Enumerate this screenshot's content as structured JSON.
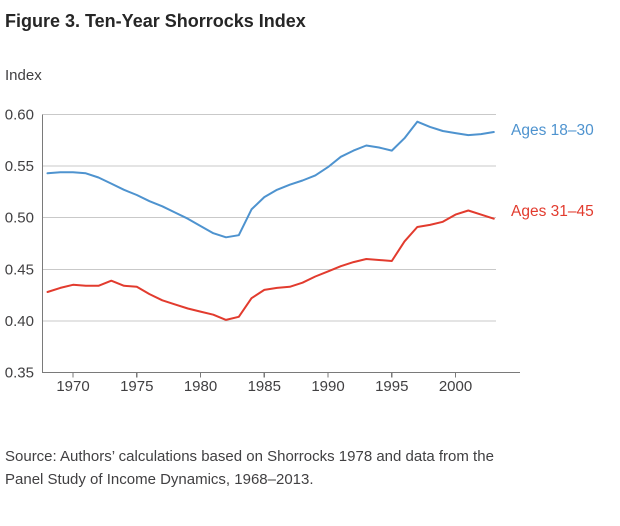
{
  "title": "Figure 3. Ten-Year Shorrocks Index",
  "source": {
    "line1": "Source: Authors’ calculations based on Shorrocks 1978 and data from the",
    "line2": "Panel Study of Income Dynamics, 1968–2013."
  },
  "colors": {
    "blue": "#4e93cf",
    "red": "#e23b2e",
    "gridline": "#c9c9c9",
    "axis": "#7a7a7a",
    "tick_text": "#414042",
    "title_text": "#262626"
  },
  "chart_data": {
    "type": "line",
    "title": "Figure 3. Ten-Year Shorrocks Index",
    "ylabel": "Index",
    "xlabel": "",
    "ylim": [
      0.35,
      0.6
    ],
    "xlim": [
      1967.5,
      2004.8
    ],
    "grid": "horizontal",
    "legend_position": "labels-right-of-lines",
    "x": [
      1968,
      1969,
      1970,
      1971,
      1972,
      1973,
      1974,
      1975,
      1976,
      1977,
      1978,
      1979,
      1980,
      1981,
      1982,
      1983,
      1984,
      1985,
      1986,
      1987,
      1988,
      1989,
      1990,
      1991,
      1992,
      1993,
      1994,
      1995,
      1996,
      1997,
      1998,
      1999,
      2000,
      2001,
      2002,
      2003
    ],
    "series": [
      {
        "name": "Ages 18–30",
        "color": "#4e93cf",
        "values": [
          0.543,
          0.544,
          0.544,
          0.543,
          0.539,
          0.533,
          0.527,
          0.522,
          0.516,
          0.511,
          0.505,
          0.499,
          0.492,
          0.485,
          0.481,
          0.483,
          0.508,
          0.52,
          0.527,
          0.532,
          0.536,
          0.541,
          0.549,
          0.559,
          0.565,
          0.57,
          0.568,
          0.565,
          0.577,
          0.593,
          0.588,
          0.584,
          0.582,
          0.58,
          0.581,
          0.583
        ]
      },
      {
        "name": "Ages 31–45",
        "color": "#e23b2e",
        "values": [
          0.428,
          0.432,
          0.435,
          0.434,
          0.434,
          0.439,
          0.434,
          0.433,
          0.426,
          0.42,
          0.416,
          0.412,
          0.409,
          0.406,
          0.401,
          0.404,
          0.422,
          0.43,
          0.432,
          0.433,
          0.437,
          0.443,
          0.448,
          0.453,
          0.457,
          0.46,
          0.459,
          0.458,
          0.477,
          0.491,
          0.493,
          0.496,
          0.503,
          0.507,
          0.503,
          0.499
        ]
      }
    ],
    "yticks": [
      0.35,
      0.4,
      0.45,
      0.5,
      0.55,
      0.6
    ],
    "ytick_labels": [
      "0.35",
      "0.40",
      "0.45",
      "0.50",
      "0.55",
      "0.60"
    ],
    "xticks": [
      1970,
      1975,
      1980,
      1985,
      1990,
      1995,
      2000
    ],
    "xtick_labels": [
      "1970",
      "1975",
      "1980",
      "1985",
      "1990",
      "1995",
      "2000"
    ]
  }
}
